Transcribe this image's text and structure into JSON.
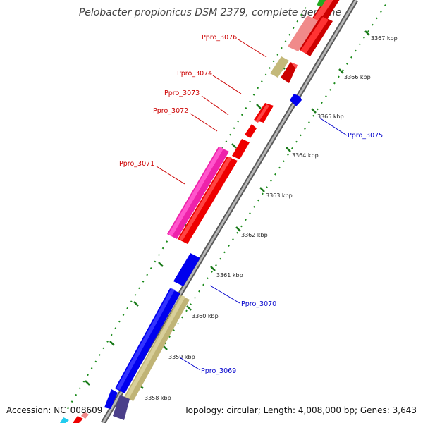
{
  "title": "Pelobacter propionicus DSM 2379, complete genome",
  "footer": {
    "accession": "Accession: NC_008609",
    "topology": "Topology: circular; Length: 4,008,000 bp; Genes: 3,643"
  },
  "colors": {
    "forward_label": "#cc0000",
    "reverse_label": "#0000cc",
    "backbone": "#8a8a8a",
    "tick_major": "#1a7a1a",
    "tick_minor": "#1a8a1a"
  },
  "ticks": [
    {
      "label": "3358 kbp"
    },
    {
      "label": "3359 kbp"
    },
    {
      "label": "3360 kbp"
    },
    {
      "label": "3361 kbp"
    },
    {
      "label": "3362 kbp"
    },
    {
      "label": "3363 kbp"
    },
    {
      "label": "3364 kbp"
    },
    {
      "label": "3365 kbp"
    },
    {
      "label": "3366 kbp"
    },
    {
      "label": "3367 kbp"
    }
  ],
  "gene_labels": {
    "ppro_3076": "Ppro_3076",
    "ppro_3074": "Ppro_3074",
    "ppro_3073": "Ppro_3073",
    "ppro_3072": "Ppro_3072",
    "ppro_3071": "Ppro_3071",
    "ppro_3075": "Ppro_3075",
    "ppro_3070": "Ppro_3070",
    "ppro_3069": "Ppro_3069"
  }
}
